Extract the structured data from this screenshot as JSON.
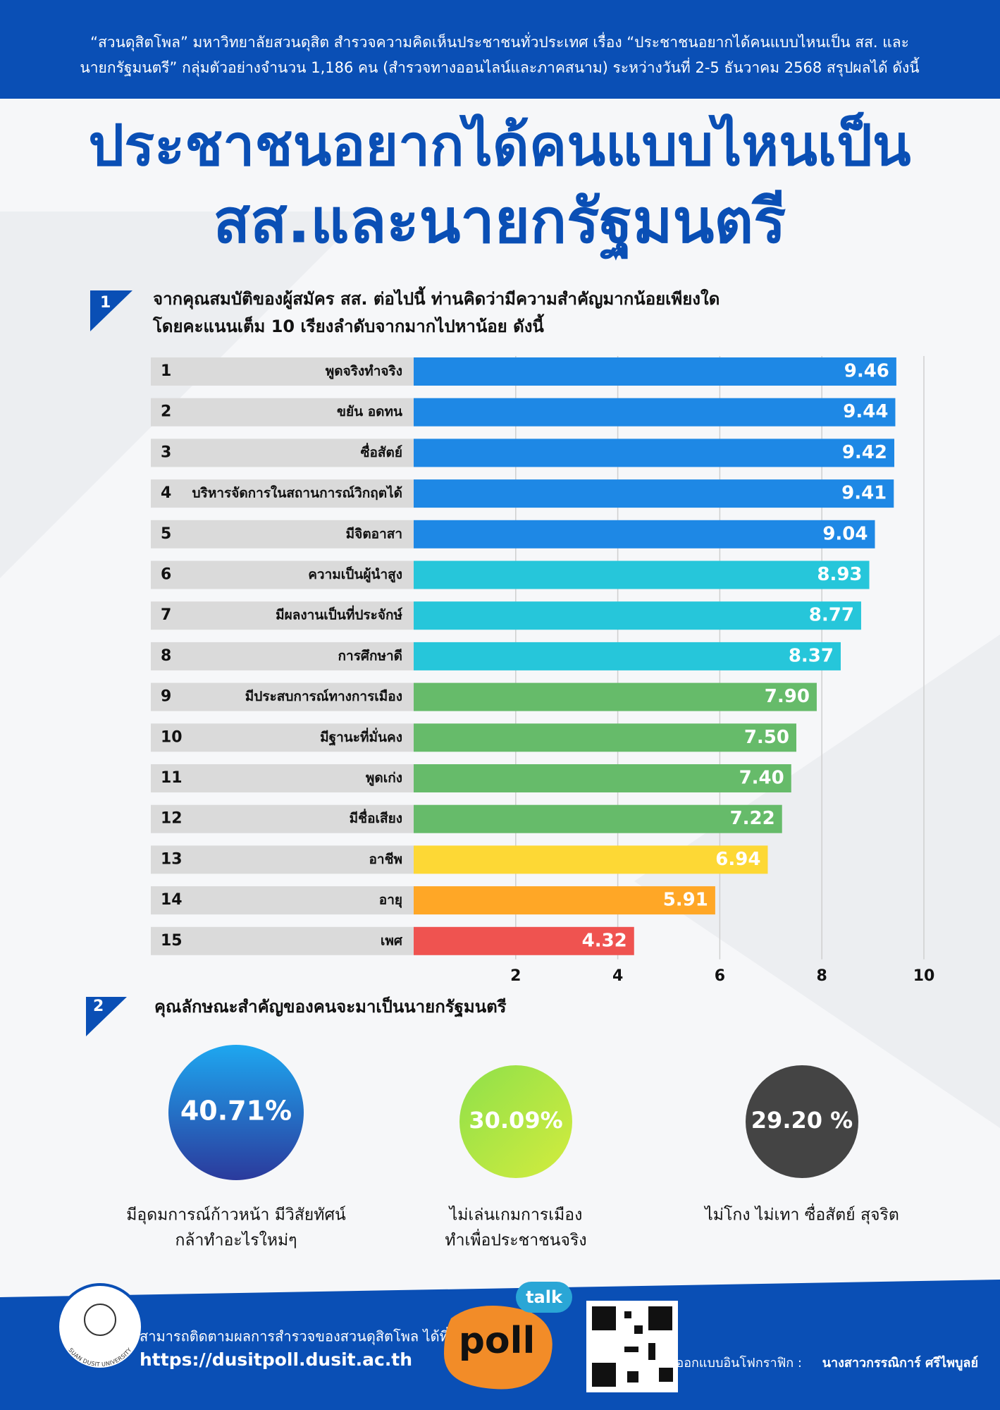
{
  "header": {
    "lines": [
      "“สวนดุสิตโพล” มหาวิทยาลัยสวนดุสิต สำรวจความคิดเห็นประชาชนทั่วประเทศ เรื่อง “ประชาชนอยากได้คนแบบไหนเป็น สส. และ",
      "นายกรัฐมนตรี” กลุ่มตัวอย่างจำนวน 1,186 คน (สำรวจทางออนไลน์และภาคสนาม) ระหว่างวันที่ 2-5 ธันวาคม 2568 สรุปผลได้ ดังนี้"
    ]
  },
  "title": [
    "ประชาชนอยากได้คนแบบไหนเป็น",
    "สส.และนายกรัฐมนตรี"
  ],
  "chart_data": {
    "type": "bar",
    "orientation": "horizontal",
    "section_number": "1",
    "question": [
      "จากคุณสมบัติของผู้สมัคร สส. ต่อไปนี้ ท่านคิดว่ามีความสำคัญมากน้อยเพียงใด",
      "โดยคะแนนเต็ม 10 เรียงลำดับจากมากไปหาน้อย ดังนี้"
    ],
    "ranks": [
      1,
      2,
      3,
      4,
      5,
      6,
      7,
      8,
      9,
      10,
      11,
      12,
      13,
      14,
      15
    ],
    "categories": [
      "พูดจริงทำจริง",
      "ขยัน อดทน",
      "ซื่อสัตย์",
      "บริหารจัดการในสถานการณ์วิกฤตได้",
      "มีจิตอาสา",
      "ความเป็นผู้นำสูง",
      "มีผลงานเป็นที่ประจักษ์",
      "การศึกษาดี",
      "มีประสบการณ์ทางการเมือง",
      "มีฐานะที่มั่นคง",
      "พูดเก่ง",
      "มีชื่อเสียง",
      "อาชีพ",
      "อายุ",
      "เพศ"
    ],
    "values": [
      9.46,
      9.44,
      9.42,
      9.41,
      9.04,
      8.93,
      8.77,
      8.37,
      7.9,
      7.5,
      7.4,
      7.22,
      6.94,
      5.91,
      4.32
    ],
    "value_labels": [
      "9.46",
      "9.44",
      "9.42",
      "9.41",
      "9.04",
      "8.93",
      "8.77",
      "8.37",
      "7.90",
      "7.50",
      "7.40",
      "7.22",
      "6.94",
      "5.91",
      "4.32"
    ],
    "colors": [
      "#1e88e5",
      "#1e88e5",
      "#1e88e5",
      "#1e88e5",
      "#1e88e5",
      "#26c6da",
      "#26c6da",
      "#26c6da",
      "#66bb6a",
      "#66bb6a",
      "#66bb6a",
      "#66bb6a",
      "#fdd835",
      "#ffa726",
      "#ef5350"
    ],
    "xlim": [
      0,
      10
    ],
    "xticks": [
      2,
      4,
      6,
      8,
      10
    ],
    "grid": true
  },
  "section2": {
    "number": "2",
    "title": "คุณลักษณะสำคัญของคนจะมาเป็นนายกรัฐมนตรี",
    "items": [
      {
        "value": 40.71,
        "value_label": "40.71%",
        "caption": [
          "มีอุดมการณ์ก้าวหน้า มีวิสัยทัศน์",
          "กล้าทำอะไรใหม่ๆ"
        ]
      },
      {
        "value": 30.09,
        "value_label": "30.09%",
        "caption": [
          "ไม่เล่นเกมการเมือง",
          "ทำเพื่อประชาชนจริง"
        ]
      },
      {
        "value": 29.2,
        "value_label": "29.20 %",
        "caption": [
          "ไม่โกง ไม่เทา ซื่อสัตย์ สุจริต"
        ]
      }
    ]
  },
  "footer": {
    "follow": "สามารถติดตามผลการสำรวจของสวนดุสิตโพล ได้ที่",
    "url": "https://dusitpoll.dusit.ac.th",
    "designer": "ออกแบบอินโฟกราฟิก :",
    "designer_name": "นางสาวกรรณิการ์ ศรีไพบูลย์",
    "logo_text": "SUAN DUSIT UNIVERSITY",
    "talk": "talk",
    "poll": "poll"
  }
}
